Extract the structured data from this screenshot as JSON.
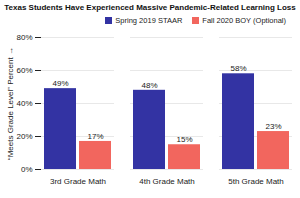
{
  "chart_data": {
    "type": "bar",
    "title": "Texas Students Have Experienced Massive Pandemic-Related Learning Loss",
    "y_label": "“Meets Grade Level” Percent",
    "categories": [
      "3rd Grade Math",
      "4th Grade Math",
      "5th Grade Math"
    ],
    "series": [
      {
        "name": "Spring 2019 STAAR",
        "color": "#3333a3",
        "values": [
          49,
          48,
          58
        ],
        "value_labels": [
          "49%",
          "48%",
          "58%"
        ]
      },
      {
        "name": "Fall 2020 BOY (Optional)",
        "color": "#f2665e",
        "values": [
          17,
          15,
          23
        ],
        "value_labels": [
          "17%",
          "15%",
          "23%"
        ]
      }
    ],
    "ylim": [
      0,
      80
    ],
    "yticks": [
      {
        "value": 0,
        "label": "0%"
      },
      {
        "value": 20,
        "label": "20%"
      },
      {
        "value": 40,
        "label": "40%"
      },
      {
        "value": 60,
        "label": "60%"
      },
      {
        "value": 80,
        "label": "80%"
      }
    ],
    "grid": true,
    "legend": "top",
    "data_labels": true
  }
}
